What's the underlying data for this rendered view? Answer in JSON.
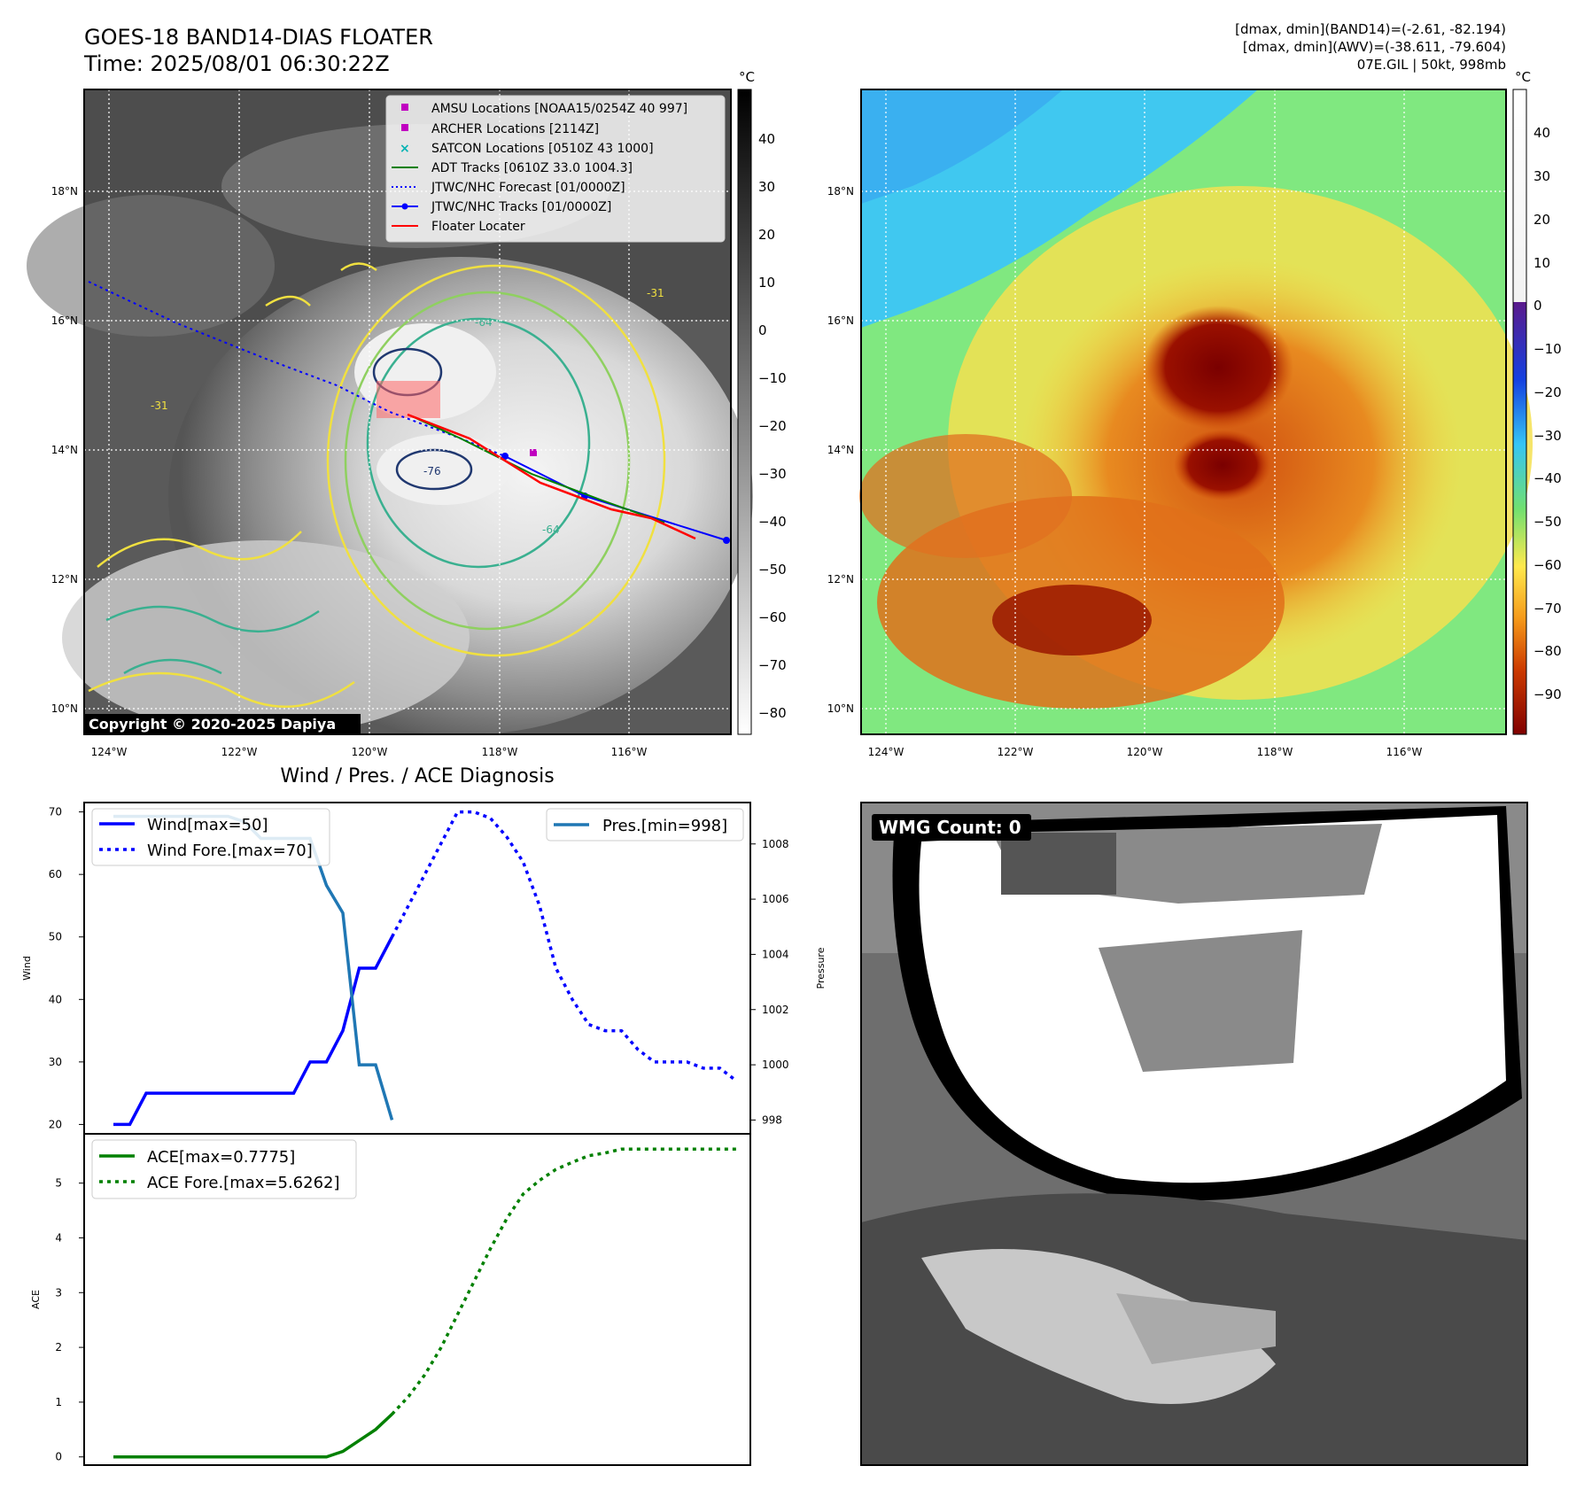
{
  "header": {
    "title": "GOES-18 BAND14-DIAS FLOATER",
    "time": "Time: 2025/08/01 06:30:22Z",
    "stats_band14": "[dmax, dmin](BAND14)=(-2.61, -82.194)",
    "stats_awv": "[dmax, dmin](AWV)=(-38.611, -79.604)",
    "storm_info": "07E.GIL | 50kt, 998mb"
  },
  "maps": {
    "lat_labels": [
      "18°N",
      "16°N",
      "14°N",
      "12°N",
      "10°N"
    ],
    "lon_labels": [
      "124°W",
      "122°W",
      "120°W",
      "118°W",
      "116°W"
    ],
    "copyright": "Copyright © 2020-2025 Dapiya",
    "contour_labels": [
      "-31",
      "-64",
      "-76",
      "-64",
      "-31"
    ],
    "legend": [
      {
        "label": "AMSU Locations [NOAA15/0254Z 40 997]",
        "color": "#c000c0",
        "marker": "square"
      },
      {
        "label": "ARCHER Locations [2114Z]",
        "color": "#c000c0",
        "marker": "square"
      },
      {
        "label": "SATCON Locations [0510Z 43 1000]",
        "color": "#00b3b3",
        "marker": "x"
      },
      {
        "label": "ADT Tracks [0610Z 33.0 1004.3]",
        "color": "#008000",
        "marker": "line"
      },
      {
        "label": "JTWC/NHC Forecast [01/0000Z]",
        "color": "#0000ff",
        "marker": "dotted"
      },
      {
        "label": "JTWC/NHC Tracks [01/0000Z]",
        "color": "#0000ff",
        "marker": "line-dot"
      },
      {
        "label": "Floater Locater",
        "color": "#ff0000",
        "marker": "line"
      }
    ],
    "colorbar_left": {
      "unit": "°C",
      "ticks": [
        "40",
        "30",
        "20",
        "10",
        "0",
        "−10",
        "−20",
        "−30",
        "−40",
        "−50",
        "−60",
        "−70",
        "−80"
      ]
    },
    "colorbar_right": {
      "unit": "°C",
      "ticks": [
        "40",
        "30",
        "20",
        "10",
        "0",
        "−10",
        "−20",
        "−30",
        "−40",
        "−50",
        "−60",
        "−70",
        "−80",
        "−90"
      ]
    }
  },
  "wmg": {
    "label": "WMG Count: 0"
  },
  "chart_data": [
    {
      "type": "line",
      "title": "Wind / Pres. / ACE Diagnosis",
      "ylabel": "Wind",
      "ylabel_right": "Pressure",
      "ylim": [
        18.5,
        71.5
      ],
      "ylim_right": [
        997.5,
        1009.5
      ],
      "yticks": [
        "20",
        "30",
        "40",
        "50",
        "60",
        "70"
      ],
      "yticks_right": [
        "998",
        "1000",
        "1002",
        "1004",
        "1006",
        "1008"
      ],
      "series": [
        {
          "name": "Wind[max=50]",
          "color": "#0000ff",
          "style": "solid",
          "x": [
            0,
            1,
            2,
            3,
            4,
            5,
            6,
            7,
            8,
            9,
            10,
            11,
            12,
            13,
            14,
            15,
            16,
            17
          ],
          "values": [
            20,
            20,
            25,
            25,
            25,
            25,
            25,
            25,
            25,
            25,
            25,
            25,
            30,
            30,
            35,
            45,
            45,
            50
          ]
        },
        {
          "name": "Wind Fore.[max=70]",
          "color": "#0000ff",
          "style": "dotted",
          "x": [
            17,
            18,
            19,
            20,
            21,
            22,
            23,
            24,
            25,
            26,
            27,
            28,
            29,
            30,
            31,
            32,
            33,
            34,
            35,
            36,
            37,
            38
          ],
          "values": [
            50,
            55,
            60,
            65,
            70,
            70,
            69,
            66,
            62,
            55,
            45,
            40,
            36,
            35,
            35,
            32,
            30,
            30,
            30,
            29,
            29,
            27
          ]
        },
        {
          "name": "Pres.[min=998]",
          "color": "#1f77b4",
          "style": "solid",
          "axis": "right",
          "x": [
            0,
            1,
            2,
            3,
            4,
            5,
            6,
            7,
            8,
            9,
            10,
            11,
            12,
            13,
            14,
            15,
            16,
            17
          ],
          "values": [
            1009,
            1009,
            1009,
            1009,
            1009,
            1009,
            1009,
            1009,
            1008.8,
            1008.2,
            1008.2,
            1008.2,
            1008.2,
            1006.5,
            1005.5,
            1000,
            1000,
            998
          ]
        }
      ]
    },
    {
      "type": "line",
      "ylabel": "ACE",
      "ylim": [
        -0.15,
        5.9
      ],
      "yticks": [
        "0",
        "1",
        "2",
        "3",
        "4",
        "5"
      ],
      "series": [
        {
          "name": "ACE[max=0.7775]",
          "color": "#008000",
          "style": "solid",
          "x": [
            0,
            2,
            4,
            6,
            8,
            10,
            12,
            13,
            14,
            15,
            16,
            17
          ],
          "values": [
            0,
            0,
            0,
            0,
            0,
            0,
            0,
            0,
            0.1,
            0.3,
            0.5,
            0.78
          ]
        },
        {
          "name": "ACE Fore.[max=5.6262]",
          "color": "#008000",
          "style": "dotted",
          "x": [
            17,
            18,
            19,
            20,
            21,
            22,
            23,
            24,
            25,
            26,
            27,
            28,
            29,
            30,
            31,
            32,
            33,
            34,
            35,
            36,
            37,
            38
          ],
          "values": [
            0.78,
            1.1,
            1.5,
            2.0,
            2.6,
            3.2,
            3.8,
            4.35,
            4.8,
            5.05,
            5.25,
            5.38,
            5.5,
            5.55,
            5.62,
            5.62,
            5.62,
            5.62,
            5.62,
            5.62,
            5.62,
            5.62
          ]
        }
      ]
    }
  ]
}
